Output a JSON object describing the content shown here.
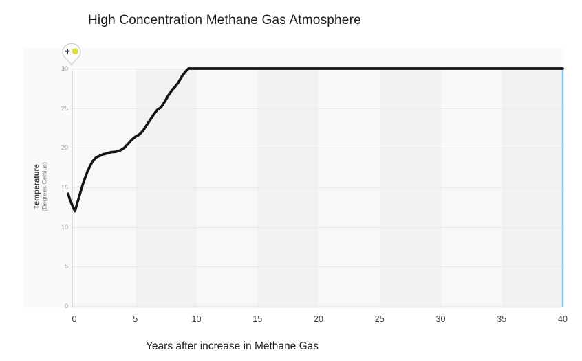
{
  "title": "High Concentration Methane Gas Atmosphere",
  "chart_data": {
    "type": "line",
    "title": "High Concentration Methane Gas Atmosphere",
    "xlabel": "Years after increase in Methane Gas",
    "ylabel": "Temperature",
    "ylabel_sub": "(Degrees Celsius)",
    "xlim": [
      0,
      40
    ],
    "ylim": [
      0,
      30
    ],
    "x_ticks": [
      0,
      5,
      10,
      15,
      20,
      25,
      30,
      35,
      40
    ],
    "y_ticks": [
      0,
      5,
      10,
      15,
      20,
      25,
      30
    ],
    "grid": "horizontal gridlines every 5 degrees; alternating vertical shade bands every 5 years",
    "legend_position": "none",
    "series": [
      {
        "name": "Temperature (Degrees Celsius)",
        "color": "#141414",
        "points": [
          [
            -0.5,
            14.2
          ],
          [
            -0.35,
            13.4
          ],
          [
            0.05,
            12.0
          ],
          [
            0.3,
            13.3
          ],
          [
            0.7,
            15.4
          ],
          [
            1.1,
            17.1
          ],
          [
            1.5,
            18.3
          ],
          [
            1.8,
            18.8
          ],
          [
            2.1,
            19.0
          ],
          [
            2.4,
            19.2
          ],
          [
            2.7,
            19.3
          ],
          [
            3.0,
            19.45
          ],
          [
            3.4,
            19.5
          ],
          [
            3.8,
            19.7
          ],
          [
            4.1,
            20.0
          ],
          [
            4.4,
            20.5
          ],
          [
            4.7,
            21.0
          ],
          [
            5.0,
            21.4
          ],
          [
            5.3,
            21.65
          ],
          [
            5.6,
            22.1
          ],
          [
            5.9,
            22.8
          ],
          [
            6.2,
            23.5
          ],
          [
            6.5,
            24.2
          ],
          [
            6.8,
            24.8
          ],
          [
            7.1,
            25.1
          ],
          [
            7.4,
            25.8
          ],
          [
            7.7,
            26.6
          ],
          [
            8.0,
            27.3
          ],
          [
            8.25,
            27.7
          ],
          [
            8.5,
            28.2
          ],
          [
            8.8,
            29.0
          ],
          [
            9.1,
            29.6
          ],
          [
            9.35,
            30.0
          ],
          [
            40,
            30.0
          ]
        ]
      }
    ],
    "annotations": {
      "cursor_line": {
        "x": 40,
        "y_from": 0,
        "y_to": 30,
        "color": "#8ec8f1"
      },
      "pin_marker": {
        "contains": [
          "plus-icon",
          "yellow-dot-icon"
        ],
        "dot_color": "#e0dd30",
        "location": "above top-left corner of plot"
      }
    },
    "colors": {
      "panel_bg": "#fafafa",
      "band_light": "#f8f8f9",
      "band_dark": "#f2f2f3",
      "gridline": "#e9e9e9",
      "axis_line": "#dddddd",
      "y_tick_label": "#999999",
      "x_tick_label": "#3b3b3b",
      "curve": "#141414",
      "cursor_line": "#8ec8f1"
    }
  }
}
